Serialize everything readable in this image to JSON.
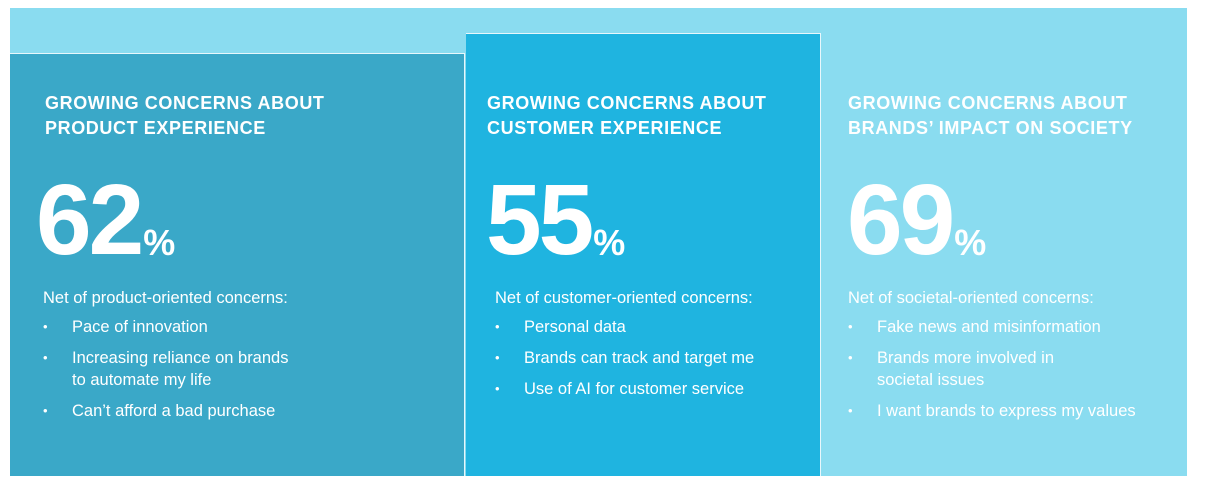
{
  "panels": [
    {
      "title": [
        "GROWING CONCERNS ABOUT",
        "PRODUCT EXPERIENCE"
      ],
      "value": 62,
      "unit": "%",
      "subtitle": "Net of product-oriented concerns:",
      "bullets": [
        [
          "Pace of innovation"
        ],
        [
          "Increasing reliance on brands",
          "to automate my life"
        ],
        [
          "Can’t afford a bad purchase"
        ]
      ]
    },
    {
      "title": [
        "GROWING CONCERNS ABOUT",
        "CUSTOMER EXPERIENCE"
      ],
      "value": 55,
      "unit": "%",
      "subtitle": "Net of customer-oriented concerns:",
      "bullets": [
        [
          "Personal data"
        ],
        [
          "Brands can track and target me"
        ],
        [
          "Use of AI for customer service"
        ]
      ]
    },
    {
      "title": [
        "GROWING CONCERNS ABOUT",
        "BRANDS’ IMPACT ON SOCIETY"
      ],
      "value": 69,
      "unit": "%",
      "subtitle": "Net of societal-oriented concerns:",
      "bullets": [
        [
          "Fake news and misinformation"
        ],
        [
          "Brands more involved in",
          "societal issues"
        ],
        [
          "I want brands to express my values"
        ]
      ]
    }
  ]
}
